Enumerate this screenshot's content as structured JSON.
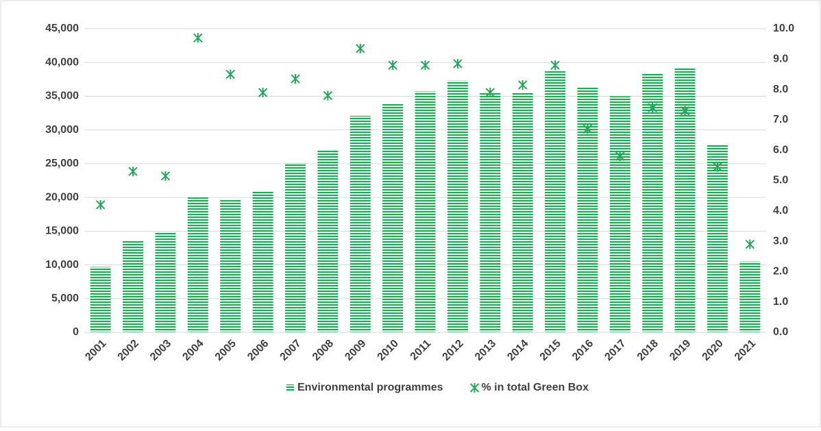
{
  "chart_data": {
    "type": "bar-scatter",
    "categories": [
      "2001",
      "2002",
      "2003",
      "2004",
      "2005",
      "2006",
      "2007",
      "2008",
      "2009",
      "2010",
      "2011",
      "2012",
      "2013",
      "2014",
      "2015",
      "2016",
      "2017",
      "2018",
      "2019",
      "2020",
      "2021"
    ],
    "series": [
      {
        "name": "Environmental programmes",
        "color": "#1fa855",
        "type": "bar",
        "values": [
          9700,
          13600,
          14900,
          20000,
          19600,
          21000,
          25100,
          27100,
          32100,
          33900,
          35700,
          37300,
          35600,
          35600,
          38700,
          36300,
          35000,
          38400,
          39200,
          27800,
          10500
        ]
      },
      {
        "name": "% in total Green Box",
        "color": "#1fa855",
        "type": "scatter",
        "axis": "y2",
        "values": [
          4.2,
          5.3,
          5.15,
          9.7,
          8.5,
          7.9,
          8.35,
          7.8,
          9.35,
          8.8,
          8.8,
          8.85,
          7.9,
          8.15,
          8.8,
          6.7,
          5.8,
          7.4,
          7.3,
          5.45,
          2.9
        ]
      }
    ],
    "ylim": [
      0,
      45000
    ],
    "yticks": [
      0,
      {
        "value": 5000,
        "label": "5,000"
      },
      {
        "value": 10000,
        "label": "10,000"
      },
      {
        "value": 15000,
        "label": "15,000"
      },
      {
        "value": 20000,
        "label": "20,000"
      },
      {
        "value": 25000,
        "label": "25,000"
      },
      {
        "value": 30000,
        "label": "30,000"
      },
      {
        "value": 35000,
        "label": "35,000"
      },
      {
        "value": 40000,
        "label": "40,000"
      },
      {
        "value": 45000,
        "label": "45,000"
      }
    ],
    "y2lim": [
      0,
      10
    ],
    "y2ticks": [
      {
        "value": 0,
        "label": "0.0"
      },
      {
        "value": 1,
        "label": "1.0"
      },
      {
        "value": 2,
        "label": "2.0"
      },
      {
        "value": 3,
        "label": "3.0"
      },
      {
        "value": 4,
        "label": "4.0"
      },
      {
        "value": 5,
        "label": "5.0"
      },
      {
        "value": 6,
        "label": "6.0"
      },
      {
        "value": 7,
        "label": "7.0"
      },
      {
        "value": 8,
        "label": "8.0"
      },
      {
        "value": 9,
        "label": "9.0"
      },
      {
        "value": 10,
        "label": "10.0"
      }
    ],
    "grid": true,
    "legend": "bottom"
  }
}
